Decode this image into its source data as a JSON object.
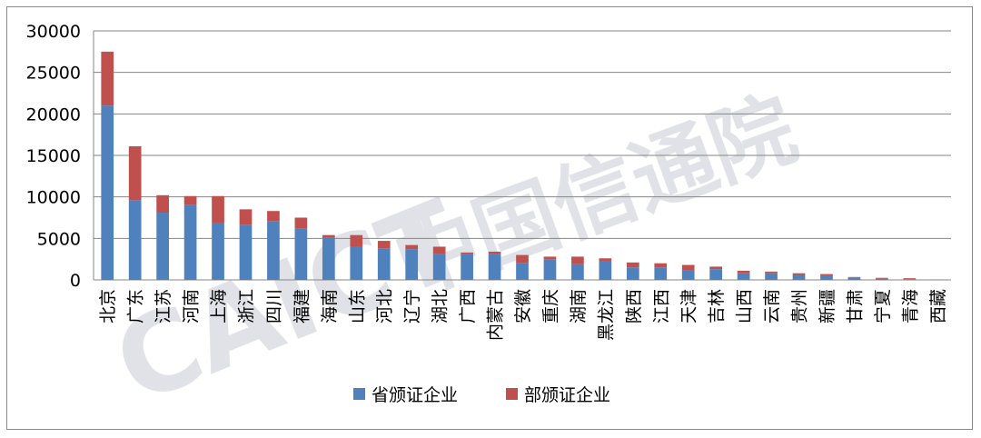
{
  "colors": {
    "provincial": "#4F81BD",
    "ministerial": "#C0504D",
    "grid": "#868686",
    "watermark": "#c9cdd6"
  },
  "watermark": {
    "latin": "CAICT",
    "chinese": "中国信通院"
  },
  "chart_data": {
    "type": "bar",
    "stacked": true,
    "title": "",
    "xlabel": "",
    "ylabel": "",
    "ylim": [
      0,
      30000
    ],
    "yticks": [
      0,
      5000,
      10000,
      15000,
      20000,
      25000,
      30000
    ],
    "grid": true,
    "legend_position": "bottom",
    "categories": [
      "北京",
      "广东",
      "江苏",
      "河南",
      "上海",
      "浙江",
      "四川",
      "福建",
      "海南",
      "山东",
      "河北",
      "辽宁",
      "湖北",
      "广西",
      "内蒙古",
      "安徽",
      "重庆",
      "湖南",
      "黑龙江",
      "陕西",
      "江西",
      "天津",
      "吉林",
      "山西",
      "云南",
      "贵州",
      "新疆",
      "甘肃",
      "宁夏",
      "青海",
      "西藏"
    ],
    "series": [
      {
        "name": "省颁证企业",
        "values": [
          21000,
          9600,
          8100,
          9000,
          6900,
          6600,
          7100,
          6200,
          5100,
          4000,
          3800,
          3700,
          3100,
          3100,
          3100,
          2000,
          2500,
          1900,
          2300,
          1500,
          1500,
          1200,
          1300,
          800,
          800,
          600,
          500,
          250,
          150,
          100,
          30
        ]
      },
      {
        "name": "部颁证企业",
        "values": [
          6500,
          6500,
          2100,
          1100,
          3200,
          1900,
          1200,
          1300,
          300,
          1400,
          900,
          500,
          900,
          200,
          300,
          1000,
          300,
          900,
          300,
          600,
          500,
          600,
          300,
          300,
          200,
          200,
          200,
          100,
          100,
          100,
          20
        ]
      }
    ]
  }
}
